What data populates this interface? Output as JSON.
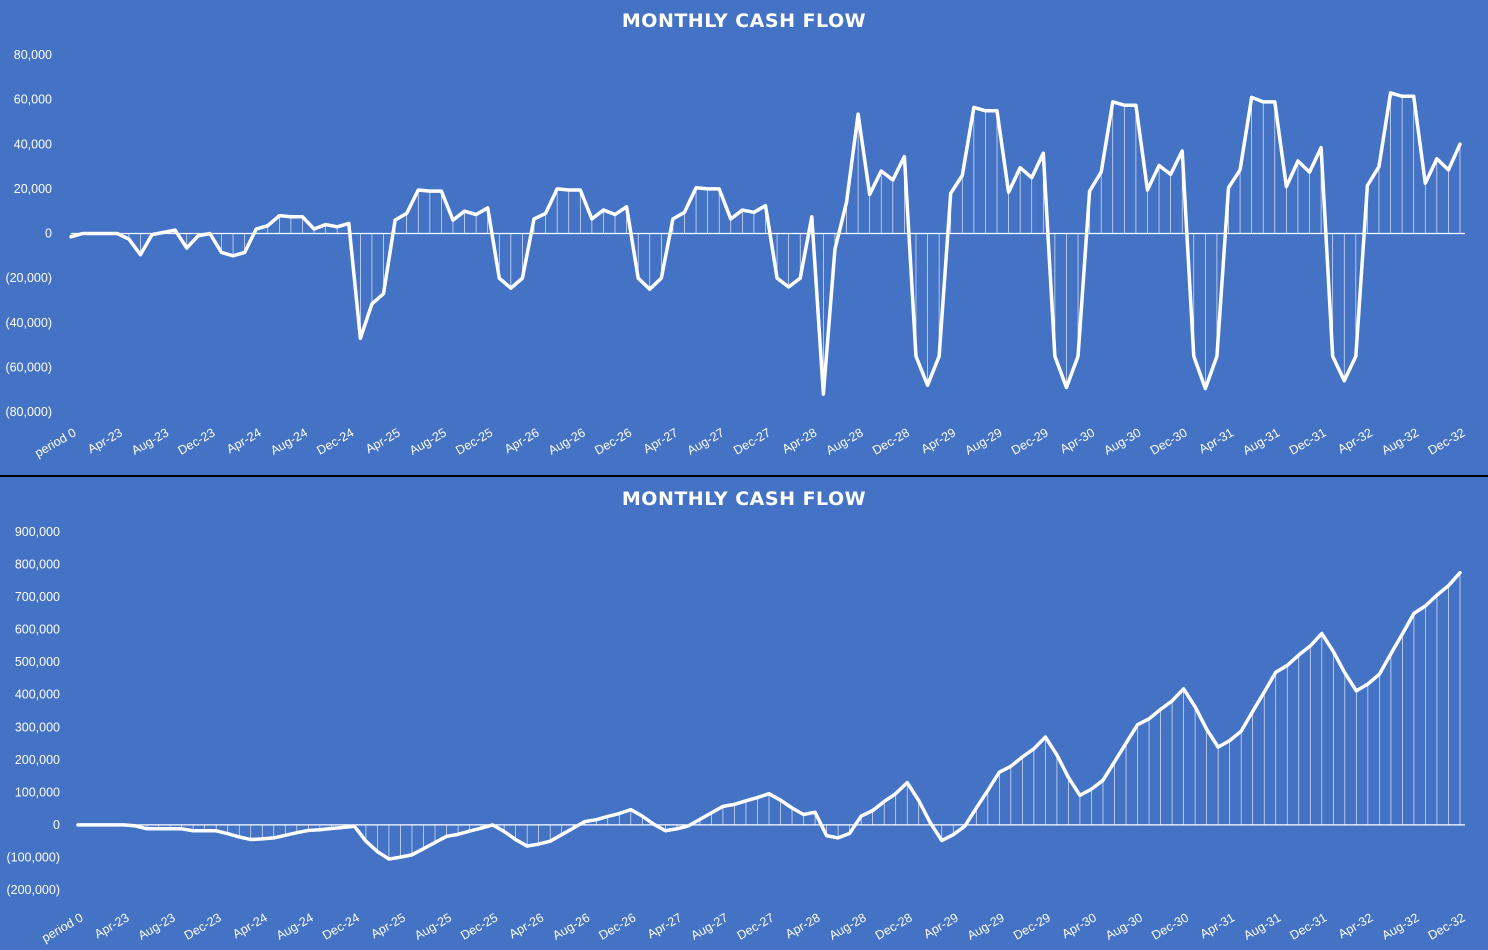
{
  "chart_data": [
    {
      "type": "line",
      "title": "MONTHLY CASH FLOW",
      "xlabel": "",
      "ylabel": "",
      "ylim": [
        -80000,
        80000
      ],
      "y_ticks": [
        80000,
        60000,
        40000,
        20000,
        0,
        -20000,
        -40000,
        -60000,
        -80000
      ],
      "y_tick_labels": [
        "80,000",
        "60,000",
        "40,000",
        "20,000",
        "0",
        "(20,000)",
        "(40,000)",
        "(60,000)",
        "(80,000)"
      ],
      "x_tick_labels": [
        "period 0",
        "Apr-23",
        "Aug-23",
        "Dec-23",
        "Apr-24",
        "Aug-24",
        "Dec-24",
        "Apr-25",
        "Aug-25",
        "Dec-25",
        "Apr-26",
        "Aug-26",
        "Dec-26",
        "Apr-27",
        "Aug-27",
        "Dec-27",
        "Apr-28",
        "Aug-28",
        "Dec-28",
        "Apr-29",
        "Aug-29",
        "Dec-29",
        "Apr-30",
        "Aug-30",
        "Dec-30",
        "Apr-31",
        "Aug-31",
        "Dec-31",
        "Apr-32",
        "Aug-32",
        "Dec-32"
      ],
      "x_start": "period 0",
      "grid": false,
      "colors": {
        "background": "#4472C4",
        "line": "#FFFFFF",
        "drop_lines": "#FFFFFF",
        "text": "#FFFFFF"
      },
      "series": [
        {
          "values": [
            -1500,
            0,
            0,
            0,
            0,
            -2500,
            -9500,
            -500,
            500,
            1500,
            -6500,
            -1000,
            0,
            -8500,
            -10000,
            -8500,
            2000,
            3500,
            8000,
            7500,
            7500,
            2000,
            4000,
            3000,
            4500,
            -47000,
            -31500,
            -27000,
            6000,
            9000,
            19500,
            19000,
            19000,
            6000,
            10000,
            8500,
            11500,
            -20000,
            -24500,
            -20000,
            6500,
            9000,
            20000,
            19500,
            19500,
            6500,
            10500,
            8500,
            12000,
            -20000,
            -25000,
            -20000,
            6500,
            9500,
            20500,
            20000,
            20000,
            6500,
            10500,
            9500,
            12500,
            -20000,
            -24000,
            -20000,
            7500,
            -72000,
            -7000,
            14000,
            53500,
            17500,
            28000,
            24000,
            34500,
            -55000,
            -68000,
            -55000,
            18000,
            26000,
            56500,
            55000,
            55000,
            18500,
            29500,
            25000,
            36000,
            -55000,
            -69000,
            -55000,
            19000,
            27500,
            59000,
            57500,
            57500,
            19500,
            30500,
            26500,
            37000,
            -55000,
            -69500,
            -55000,
            20500,
            28500,
            61000,
            59000,
            59000,
            21000,
            32500,
            27500,
            38500,
            -55000,
            -66000,
            -55000,
            21500,
            30000,
            63000,
            61500,
            61500,
            22500,
            33500,
            28500,
            40000
          ]
        }
      ]
    },
    {
      "type": "line",
      "title": "MONTHLY CASH FLOW",
      "xlabel": "",
      "ylabel": "",
      "ylim": [
        -200000,
        900000
      ],
      "y_ticks": [
        900000,
        800000,
        700000,
        600000,
        500000,
        400000,
        300000,
        200000,
        100000,
        0,
        -100000,
        -200000
      ],
      "y_tick_labels": [
        "900,000",
        "800,000",
        "700,000",
        "600,000",
        "500,000",
        "400,000",
        "300,000",
        "200,000",
        "100,000",
        "0",
        "(100,000)",
        "(200,000)"
      ],
      "x_tick_labels": [
        "period 0",
        "Apr-23",
        "Aug-23",
        "Dec-23",
        "Apr-24",
        "Aug-24",
        "Dec-24",
        "Apr-25",
        "Aug-25",
        "Dec-25",
        "Apr-26",
        "Aug-26",
        "Dec-26",
        "Apr-27",
        "Aug-27",
        "Dec-27",
        "Apr-28",
        "Aug-28",
        "Dec-28",
        "Apr-29",
        "Aug-29",
        "Dec-29",
        "Apr-30",
        "Aug-30",
        "Dec-30",
        "Apr-31",
        "Aug-31",
        "Dec-31",
        "Apr-32",
        "Aug-32",
        "Dec-32"
      ],
      "x_start": "period 0",
      "grid": false,
      "colors": {
        "background": "#4472C4",
        "line": "#FFFFFF",
        "drop_lines": "#FFFFFF",
        "text": "#FFFFFF"
      },
      "series": [
        {
          "values": [
            0,
            0,
            0,
            0,
            0,
            -3000,
            -12000,
            -12000,
            -12000,
            -12000,
            -18000,
            -18000,
            -18000,
            -27000,
            -37000,
            -45000,
            -43000,
            -40000,
            -32000,
            -24000,
            -17000,
            -15000,
            -11000,
            -8000,
            -4000,
            -50000,
            -82000,
            -105000,
            -99000,
            -92000,
            -73000,
            -54000,
            -35000,
            -29000,
            -19000,
            -10000,
            0,
            -20000,
            -45000,
            -65000,
            -59000,
            -50000,
            -30000,
            -10000,
            10000,
            16000,
            26000,
            35000,
            47000,
            27000,
            2000,
            -18000,
            -12000,
            -3000,
            17000,
            37000,
            57000,
            63000,
            74000,
            84000,
            96000,
            76000,
            52000,
            32000,
            39000,
            -33000,
            -40000,
            -26000,
            27000,
            44000,
            72000,
            96000,
            130000,
            75000,
            7000,
            -48000,
            -30000,
            -4000,
            52000,
            106000,
            162000,
            180000,
            209000,
            234000,
            270000,
            215000,
            146000,
            91000,
            110000,
            137000,
            194000,
            251000,
            308000,
            326000,
            355000,
            381000,
            418000,
            363000,
            294000,
            239000,
            259000,
            288000,
            349000,
            408000,
            469000,
            490000,
            522000,
            550000,
            588000,
            533000,
            467000,
            412000,
            433000,
            463000,
            526000,
            587000,
            650000,
            673000,
            706000,
            735000,
            775000
          ]
        }
      ]
    }
  ]
}
